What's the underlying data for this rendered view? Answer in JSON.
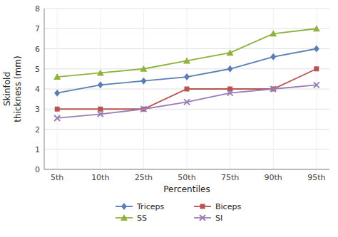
{
  "chart_data": {
    "type": "line",
    "categories": [
      "5th",
      "10th",
      "25th",
      "50th",
      "75th",
      "90th",
      "95th"
    ],
    "series": [
      {
        "name": "Triceps",
        "color": "#5a7db5",
        "marker": "diamond",
        "values": [
          3.8,
          4.2,
          4.4,
          4.6,
          5.0,
          5.6,
          6.0
        ]
      },
      {
        "name": "Biceps",
        "color": "#b85450",
        "marker": "square",
        "values": [
          3.0,
          3.0,
          3.0,
          4.0,
          4.0,
          4.0,
          5.0
        ]
      },
      {
        "name": "SS",
        "color": "#8db33a",
        "marker": "triangle",
        "values": [
          4.6,
          4.8,
          5.0,
          5.4,
          5.8,
          6.75,
          7.0
        ]
      },
      {
        "name": "SI",
        "color": "#9b7db5",
        "marker": "x",
        "values": [
          2.55,
          2.75,
          3.0,
          3.35,
          3.8,
          4.0,
          4.2
        ]
      }
    ],
    "x_label": "Percentiles",
    "y_label": "Skinfold\nthickness (mm)",
    "ylim": [
      0,
      8
    ],
    "yticks": [
      0,
      1,
      2,
      3,
      4,
      5,
      6,
      7,
      8
    ],
    "grid": true,
    "legend": "bottom"
  }
}
